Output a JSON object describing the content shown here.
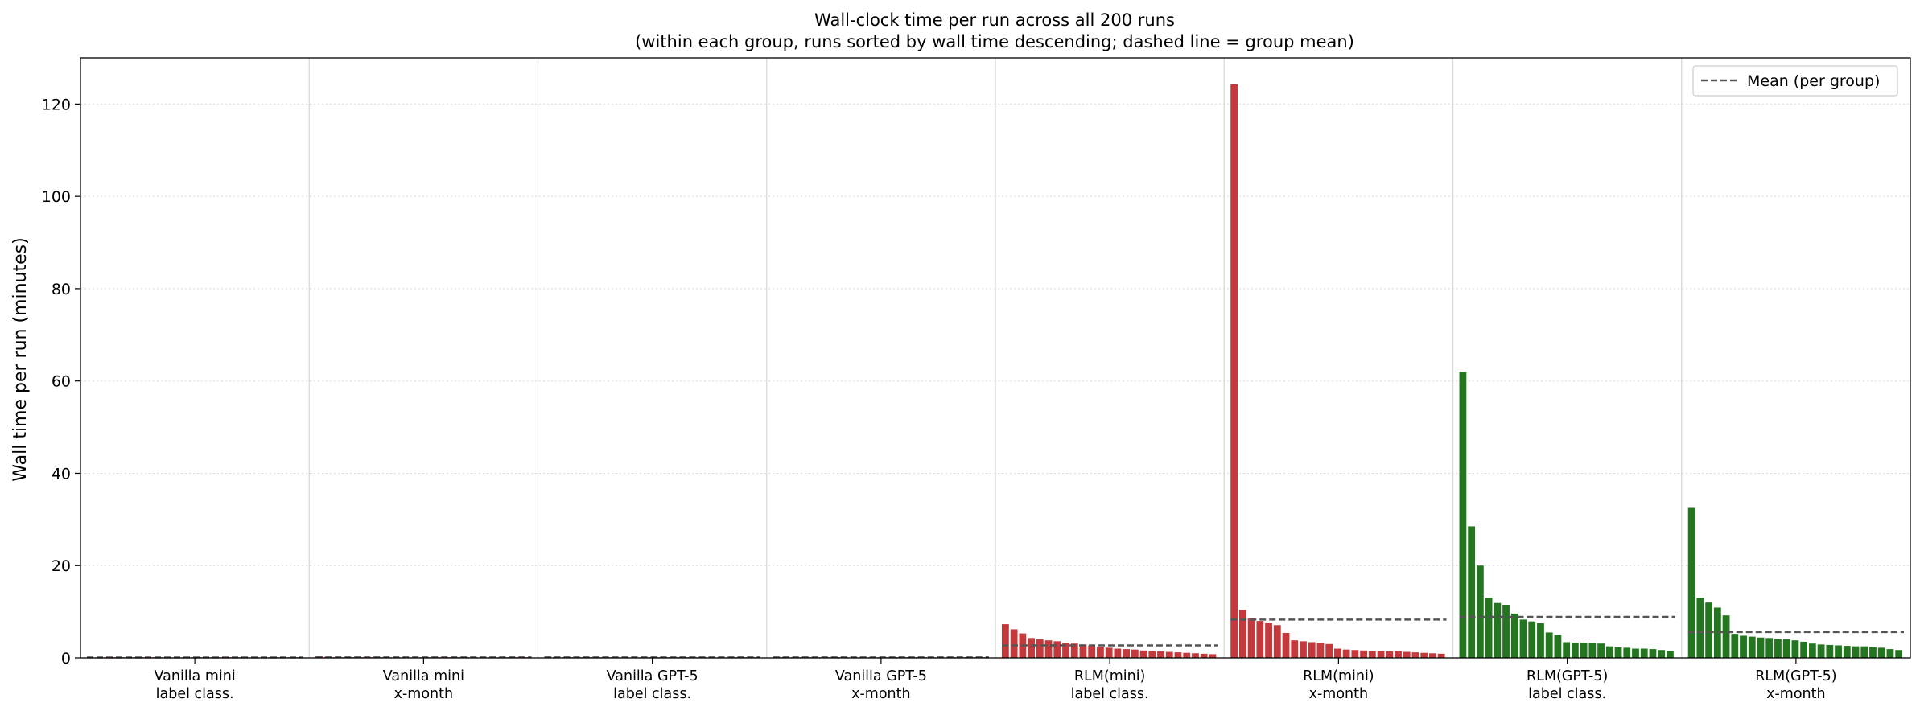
{
  "chart_data": {
    "type": "bar",
    "title": [
      "Wall-clock time per run across all 200 runs",
      "(within each group, runs sorted by wall time descending; dashed line = group mean)"
    ],
    "xlabel": "",
    "ylabel": "Wall time per run (minutes)",
    "ylim": [
      0,
      130
    ],
    "yticks": [
      0,
      20,
      40,
      60,
      80,
      100,
      120
    ],
    "grid": "horizontal dotted",
    "legend": {
      "position": "top-right",
      "entries": [
        "Mean (per group)"
      ]
    },
    "colors": {
      "red": "#c4393c",
      "green": "#23751f",
      "mean_line": "#555555"
    },
    "groups": [
      {
        "label": [
          "Vanilla mini",
          "label class."
        ],
        "color": "red",
        "mean": 0.1,
        "values": [
          0.15,
          0.14,
          0.13,
          0.12,
          0.12,
          0.11,
          0.11,
          0.1,
          0.1,
          0.1,
          0.1,
          0.09,
          0.09,
          0.09,
          0.09,
          0.08,
          0.08,
          0.08,
          0.08,
          0.07,
          0.07,
          0.07,
          0.07,
          0.06,
          0.06
        ]
      },
      {
        "label": [
          "Vanilla mini",
          "x-month"
        ],
        "color": "red",
        "mean": 0.12,
        "values": [
          0.35,
          0.2,
          0.15,
          0.14,
          0.13,
          0.13,
          0.12,
          0.12,
          0.11,
          0.11,
          0.11,
          0.1,
          0.1,
          0.1,
          0.1,
          0.09,
          0.09,
          0.09,
          0.09,
          0.08,
          0.08,
          0.08,
          0.08,
          0.07,
          0.07
        ]
      },
      {
        "label": [
          "Vanilla GPT-5",
          "label class."
        ],
        "color": "green",
        "mean": 0.12,
        "values": [
          0.3,
          0.2,
          0.15,
          0.14,
          0.13,
          0.13,
          0.12,
          0.12,
          0.11,
          0.11,
          0.11,
          0.1,
          0.1,
          0.1,
          0.1,
          0.09,
          0.09,
          0.09,
          0.09,
          0.08,
          0.08,
          0.08,
          0.08,
          0.07,
          0.07
        ]
      },
      {
        "label": [
          "Vanilla GPT-5",
          "x-month"
        ],
        "color": "green",
        "mean": 0.12,
        "values": [
          0.2,
          0.18,
          0.15,
          0.14,
          0.13,
          0.13,
          0.12,
          0.12,
          0.11,
          0.11,
          0.11,
          0.1,
          0.1,
          0.1,
          0.1,
          0.09,
          0.09,
          0.09,
          0.09,
          0.08,
          0.08,
          0.08,
          0.08,
          0.07,
          0.07
        ]
      },
      {
        "label": [
          "RLM(mini)",
          "label class."
        ],
        "color": "red",
        "mean": 2.7,
        "values": [
          7.3,
          6.2,
          5.3,
          4.3,
          4.0,
          3.8,
          3.6,
          3.3,
          3.1,
          2.9,
          2.7,
          2.4,
          2.2,
          2.0,
          1.9,
          1.8,
          1.6,
          1.5,
          1.4,
          1.3,
          1.2,
          1.1,
          1.0,
          0.9,
          0.8
        ]
      },
      {
        "label": [
          "RLM(mini)",
          "x-month"
        ],
        "color": "red",
        "mean": 8.3,
        "values": [
          124.3,
          10.4,
          8.6,
          8.0,
          7.6,
          7.1,
          5.4,
          3.8,
          3.6,
          3.4,
          3.2,
          3.0,
          2.0,
          1.8,
          1.7,
          1.6,
          1.5,
          1.5,
          1.4,
          1.4,
          1.3,
          1.2,
          1.1,
          1.0,
          0.9
        ]
      },
      {
        "label": [
          "RLM(GPT-5)",
          "label class."
        ],
        "color": "green",
        "mean": 8.9,
        "values": [
          62.0,
          28.5,
          20.0,
          13.0,
          11.9,
          11.5,
          9.6,
          8.3,
          7.9,
          7.5,
          5.5,
          5.0,
          3.4,
          3.3,
          3.3,
          3.2,
          3.1,
          2.5,
          2.3,
          2.2,
          2.0,
          2.0,
          1.9,
          1.7,
          1.5
        ]
      },
      {
        "label": [
          "RLM(GPT-5)",
          "x-month"
        ],
        "color": "green",
        "mean": 5.6,
        "values": [
          32.5,
          13.0,
          12.0,
          10.9,
          9.2,
          5.2,
          4.8,
          4.6,
          4.4,
          4.3,
          4.1,
          4.0,
          3.8,
          3.5,
          3.1,
          2.9,
          2.8,
          2.7,
          2.6,
          2.5,
          2.5,
          2.4,
          2.2,
          1.9,
          1.7
        ]
      }
    ]
  }
}
